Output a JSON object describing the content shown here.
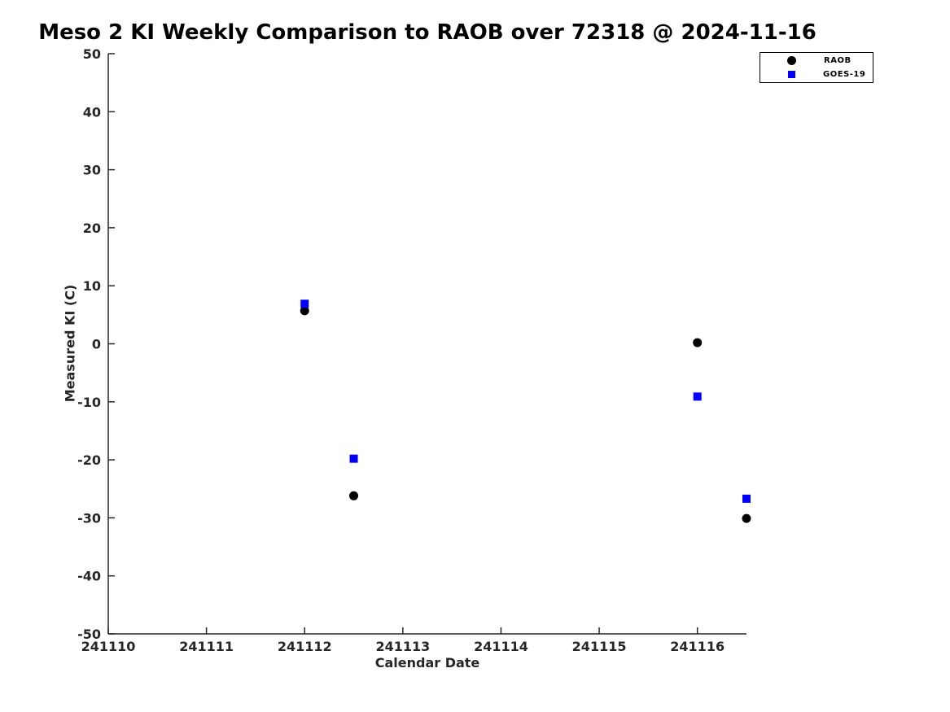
{
  "page": {
    "background": "#ffffff"
  },
  "chart_data": {
    "type": "scatter",
    "title": "Meso 2 KI Weekly Comparison to RAOB over 72318 @ 2024-11-16",
    "xlabel": "Calendar Date",
    "ylabel": "Measured KI (C)",
    "xlim": [
      241110,
      241116.5
    ],
    "ylim": [
      -50,
      50
    ],
    "xticks": [
      241110,
      241111,
      241112,
      241113,
      241114,
      241115,
      241116
    ],
    "yticks": [
      -50,
      -40,
      -30,
      -20,
      -10,
      0,
      10,
      20,
      30,
      40,
      50
    ],
    "grid": false,
    "legend_position": "top-right-outside",
    "axis_color": "#262626",
    "series": [
      {
        "name": "RAOB",
        "marker": "circle",
        "color": "#000000",
        "points": [
          [
            241112,
            5.7
          ],
          [
            241112.5,
            -26.2
          ],
          [
            241116,
            0.2
          ],
          [
            241116.5,
            -30.1
          ]
        ]
      },
      {
        "name": "GOES-19",
        "marker": "square",
        "color": "#0000ff",
        "points": [
          [
            241112,
            6.9
          ],
          [
            241112.5,
            -19.8
          ],
          [
            241116,
            -9.1
          ],
          [
            241116.5,
            -26.7
          ]
        ]
      }
    ]
  }
}
